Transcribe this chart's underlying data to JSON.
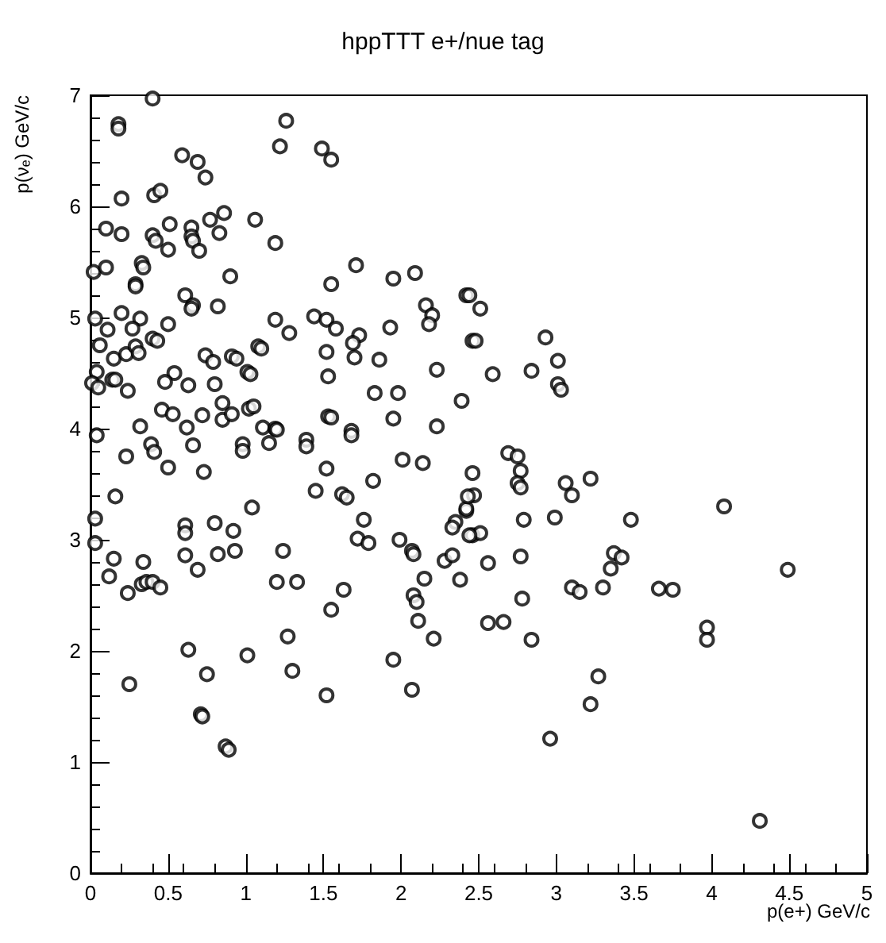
{
  "chart_data": {
    "type": "scatter",
    "title": "hppTTT e+/nue tag",
    "xlabel": "p(e+) GeV/c",
    "ylabel": "p(νₑ) GeV/c",
    "marker": "circle",
    "xlim": [
      0,
      5
    ],
    "ylim": [
      0,
      7
    ],
    "xticks": [
      0,
      0.5,
      1,
      1.5,
      2,
      2.5,
      3,
      3.5,
      4,
      4.5,
      5
    ],
    "yticks": [
      0,
      1,
      2,
      3,
      4,
      5,
      6,
      7
    ],
    "series": [
      {
        "color": "#000000",
        "x": [
          0.4,
          0.18,
          0.18,
          1.26,
          1.22,
          1.49,
          1.55,
          0.59,
          0.69,
          0.74,
          0.2,
          0.41,
          0.45,
          0.1,
          0.2,
          0.51,
          0.65,
          0.65,
          0.66,
          0.7,
          0.77,
          0.86,
          0.83,
          1.06,
          1.19,
          0.4,
          0.42,
          0.5,
          0.33,
          0.34,
          0.02,
          0.1,
          0.29,
          0.29,
          0.9,
          1.71,
          1.55,
          1.95,
          2.09,
          0.61,
          0.66,
          0.65,
          0.82,
          0.2,
          0.03,
          0.11,
          0.32,
          0.27,
          0.5,
          1.19,
          1.28,
          1.44,
          1.52,
          1.58,
          1.73,
          1.69,
          1.93,
          2.16,
          2.2,
          2.18,
          2.42,
          2.46,
          0.06,
          0.15,
          0.23,
          0.29,
          0.31,
          0.4,
          0.43,
          0.74,
          0.79,
          0.91,
          0.94,
          1.01,
          1.03,
          1.08,
          1.1,
          1.52,
          1.7,
          1.86,
          1.53,
          2.23,
          0.04,
          0.01,
          0.05,
          0.14,
          0.16,
          0.24,
          0.54,
          0.48,
          0.63,
          0.8,
          0.46,
          0.53,
          0.72,
          0.85,
          0.85,
          0.91,
          1.02,
          1.05,
          0.32,
          0.62,
          1.11,
          1.19,
          1.2,
          1.53,
          1.55,
          1.68,
          1.68,
          1.83,
          1.98,
          1.95,
          2.23,
          2.39,
          0.04,
          0.23,
          0.39,
          0.41,
          0.5,
          0.66,
          0.73,
          0.98,
          0.98,
          1.15,
          1.39,
          1.39,
          1.52,
          1.82,
          2.01,
          2.14,
          2.46,
          2.44,
          2.51,
          2.48,
          2.93,
          2.59,
          2.84,
          3.01,
          3.01,
          3.03,
          2.69,
          2.75,
          2.77,
          2.75,
          3.06,
          3.22,
          2.77,
          3.1,
          2.47,
          2.42,
          2.46,
          2.51,
          2.79,
          2.99,
          3.48,
          4.08,
          2.56,
          2.77,
          3.37,
          3.42,
          3.35,
          3.1,
          3.15,
          3.3,
          3.66,
          3.75,
          4.49,
          2.78,
          2.56,
          2.66,
          2.84,
          3.97,
          3.97,
          3.27,
          3.22,
          2.96,
          4.31,
          0.16,
          0.03,
          0.03,
          0.15,
          0.12,
          0.24,
          0.34,
          0.33,
          0.36,
          0.4,
          0.45,
          0.61,
          0.61,
          0.61,
          0.69,
          0.8,
          0.82,
          0.92,
          0.93,
          1.04,
          0.63,
          0.75,
          0.71,
          0.72,
          0.87,
          0.89,
          0.25,
          1.01,
          1.2,
          1.24,
          1.33,
          1.27,
          1.3,
          1.45,
          1.62,
          1.65,
          1.76,
          1.72,
          1.79,
          1.63,
          1.55,
          1.52,
          1.99,
          2.07,
          2.08,
          2.15,
          2.08,
          2.1,
          2.11,
          2.21,
          1.95,
          2.07,
          2.28,
          2.33,
          2.35,
          2.33,
          2.42,
          2.43,
          2.38,
          2.44
        ],
        "values": [
          6.97,
          6.74,
          6.7,
          6.77,
          6.54,
          6.52,
          6.42,
          6.46,
          6.4,
          6.26,
          6.07,
          6.1,
          6.14,
          5.8,
          5.75,
          5.84,
          5.81,
          5.73,
          5.69,
          5.6,
          5.88,
          5.94,
          5.76,
          5.88,
          5.67,
          5.74,
          5.69,
          5.61,
          5.49,
          5.45,
          5.41,
          5.45,
          5.3,
          5.28,
          5.37,
          5.47,
          5.3,
          5.35,
          5.4,
          5.2,
          5.11,
          5.08,
          5.1,
          5.04,
          4.99,
          4.89,
          4.99,
          4.9,
          4.94,
          4.98,
          4.86,
          5.01,
          4.98,
          4.9,
          4.84,
          4.77,
          4.91,
          5.11,
          5.02,
          4.94,
          5.2,
          4.79,
          4.75,
          4.63,
          4.67,
          4.74,
          4.68,
          4.81,
          4.79,
          4.66,
          4.6,
          4.65,
          4.63,
          4.51,
          4.49,
          4.74,
          4.72,
          4.69,
          4.64,
          4.62,
          4.47,
          4.53,
          4.51,
          4.41,
          4.37,
          4.44,
          4.44,
          4.34,
          4.5,
          4.42,
          4.39,
          4.4,
          4.17,
          4.13,
          4.12,
          4.23,
          4.08,
          4.13,
          4.18,
          4.2,
          4.02,
          4.01,
          4.01,
          4.0,
          3.99,
          4.11,
          4.1,
          3.98,
          3.94,
          4.32,
          4.32,
          4.09,
          4.02,
          4.25,
          3.94,
          3.75,
          3.86,
          3.79,
          3.65,
          3.85,
          3.61,
          3.86,
          3.8,
          3.87,
          3.9,
          3.84,
          3.64,
          3.53,
          3.72,
          3.69,
          3.6,
          5.2,
          5.08,
          4.79,
          4.82,
          4.49,
          4.52,
          4.61,
          4.4,
          4.35,
          3.78,
          3.75,
          3.62,
          3.51,
          3.51,
          3.55,
          3.47,
          3.4,
          3.4,
          3.26,
          3.04,
          3.06,
          3.18,
          3.2,
          3.18,
          3.3,
          2.79,
          2.85,
          2.88,
          2.84,
          2.74,
          2.57,
          2.53,
          2.57,
          2.56,
          2.55,
          2.73,
          2.47,
          2.25,
          2.26,
          2.1,
          2.21,
          2.1,
          1.77,
          1.52,
          1.21,
          0.47,
          3.39,
          3.19,
          2.97,
          2.83,
          2.67,
          2.52,
          2.8,
          2.6,
          2.62,
          2.62,
          2.57,
          3.13,
          3.06,
          2.86,
          2.73,
          3.15,
          2.87,
          3.08,
          2.9,
          3.29,
          2.01,
          1.79,
          1.43,
          1.41,
          1.14,
          1.11,
          1.7,
          1.96,
          2.62,
          2.9,
          2.62,
          2.13,
          1.82,
          3.44,
          3.41,
          3.38,
          3.18,
          3.01,
          2.97,
          2.55,
          2.37,
          1.6,
          3.0,
          2.9,
          2.87,
          2.65,
          2.5,
          2.44,
          2.27,
          2.11,
          1.92,
          1.65,
          2.81,
          2.86,
          3.16,
          3.11,
          3.28,
          3.39,
          2.64,
          3.04
        ]
      }
    ]
  }
}
